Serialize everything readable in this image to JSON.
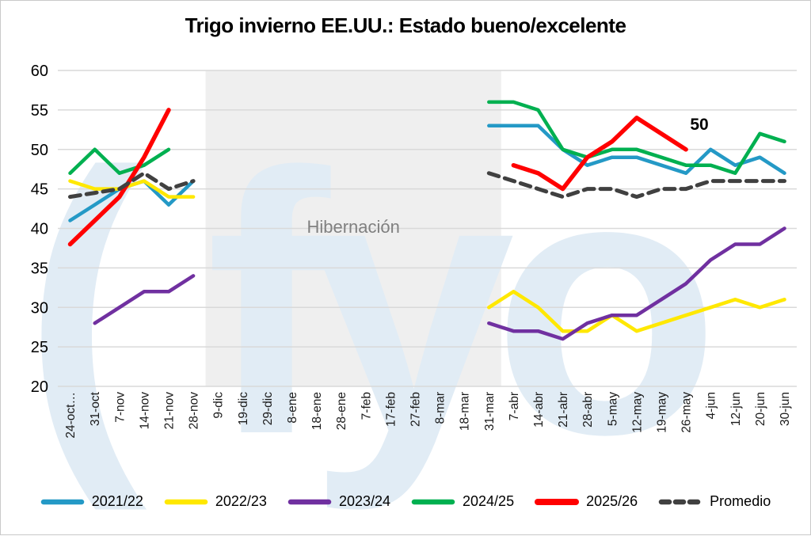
{
  "title": "Trigo invierno EE.UU.: Estado bueno/excelente",
  "annotation": {
    "text": "50",
    "category": "26-may",
    "series": "2025/26"
  },
  "hibernation": {
    "label": "Hibernación",
    "start_category": "9-dic",
    "end_category": "31-mar"
  },
  "watermark": {
    "name": "fyo-logo",
    "bracket": "(",
    "text": "fyo",
    "color": "#e1ecf5"
  },
  "colors": {
    "grid": "#d9d9d9",
    "band": "#efefef",
    "band_label": "#808080",
    "axis_text": "#262626"
  },
  "chart_data": {
    "type": "line",
    "title": "Trigo invierno EE.UU.: Estado bueno/excelente",
    "xlabel": "",
    "ylabel": "",
    "ylim": [
      20,
      60
    ],
    "ytick_step": 5,
    "grid": "horizontal",
    "legend_position": "bottom",
    "categories": [
      "24-oct…",
      "31-oct",
      "7-nov",
      "14-nov",
      "21-nov",
      "28-nov",
      "9-dic",
      "19-dic",
      "29-dic",
      "8-ene",
      "18-ene",
      "28-ene",
      "7-feb",
      "17-feb",
      "27-feb",
      "8-mar",
      "18-mar",
      "31-mar",
      "7-abr",
      "14-abr",
      "21-abr",
      "28-abr",
      "5-may",
      "12-may",
      "19-may",
      "26-may",
      "4-jun",
      "12-jun",
      "20-jun",
      "30-jun"
    ],
    "series": [
      {
        "name": "2021/22",
        "color": "#2499c6",
        "dash": null,
        "width": 4.5,
        "values": [
          41,
          43,
          45,
          46,
          43,
          46,
          null,
          null,
          null,
          null,
          null,
          null,
          null,
          null,
          null,
          null,
          null,
          53,
          53,
          53,
          50,
          48,
          49,
          49,
          48,
          47,
          50,
          48,
          49,
          47
        ]
      },
      {
        "name": "2022/23",
        "color": "#ffe800",
        "dash": null,
        "width": 4.5,
        "values": [
          46,
          45,
          45,
          46,
          44,
          44,
          null,
          null,
          null,
          null,
          null,
          null,
          null,
          null,
          null,
          null,
          null,
          30,
          32,
          30,
          27,
          27,
          29,
          27,
          28,
          29,
          30,
          31,
          30,
          31
        ]
      },
      {
        "name": "2023/24",
        "color": "#7030a0",
        "dash": null,
        "width": 4.5,
        "values": [
          null,
          28,
          30,
          32,
          32,
          34,
          null,
          null,
          null,
          null,
          null,
          null,
          null,
          null,
          null,
          null,
          null,
          28,
          27,
          27,
          26,
          28,
          29,
          29,
          31,
          33,
          36,
          38,
          38,
          40
        ]
      },
      {
        "name": "2024/25",
        "color": "#00b050",
        "dash": null,
        "width": 4.5,
        "values": [
          47,
          50,
          47,
          48,
          50,
          null,
          null,
          null,
          null,
          null,
          null,
          null,
          null,
          null,
          null,
          null,
          null,
          56,
          56,
          55,
          50,
          49,
          50,
          50,
          49,
          48,
          48,
          47,
          52,
          51
        ]
      },
      {
        "name": "2025/26",
        "color": "#ff0000",
        "dash": null,
        "width": 5.5,
        "values": [
          38,
          41,
          44,
          49,
          55,
          null,
          null,
          null,
          null,
          null,
          null,
          null,
          null,
          null,
          null,
          null,
          null,
          null,
          48,
          47,
          45,
          49,
          51,
          54,
          52,
          50,
          null,
          null,
          null,
          null
        ]
      },
      {
        "name": "Promedio",
        "color": "#404040",
        "dash": [
          13,
          8
        ],
        "width": 5,
        "values": [
          44,
          44.5,
          45,
          47,
          45,
          46,
          null,
          null,
          null,
          null,
          null,
          null,
          null,
          null,
          null,
          null,
          null,
          47,
          46,
          45,
          44,
          45,
          45,
          44,
          45,
          45,
          46,
          46,
          46,
          46
        ]
      }
    ]
  }
}
